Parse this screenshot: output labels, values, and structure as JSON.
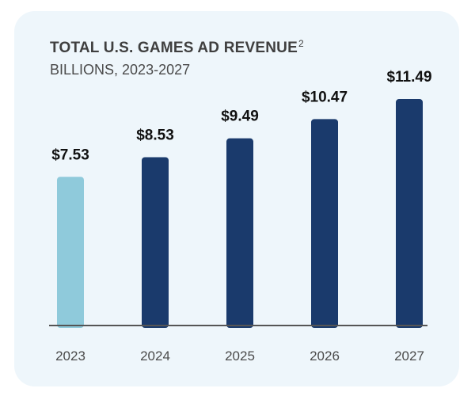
{
  "chart_data": {
    "type": "bar",
    "title": "TOTAL U.S. GAMES AD REVENUE",
    "title_superscript": "2",
    "subtitle": "BILLIONS, 2023-2027",
    "categories": [
      "2023",
      "2024",
      "2025",
      "2026",
      "2027"
    ],
    "values": [
      7.53,
      8.53,
      9.49,
      10.47,
      11.49
    ],
    "data_labels": [
      "$7.53",
      "$8.53",
      "$9.49",
      "$10.47",
      "$11.49"
    ],
    "bar_colors": [
      "#8fcadb",
      "#1a3a6c",
      "#1a3a6c",
      "#1a3a6c",
      "#1a3a6c"
    ],
    "axis_color": "#555555",
    "background_color": "#eef6fb",
    "grid": false,
    "legend": "none"
  }
}
